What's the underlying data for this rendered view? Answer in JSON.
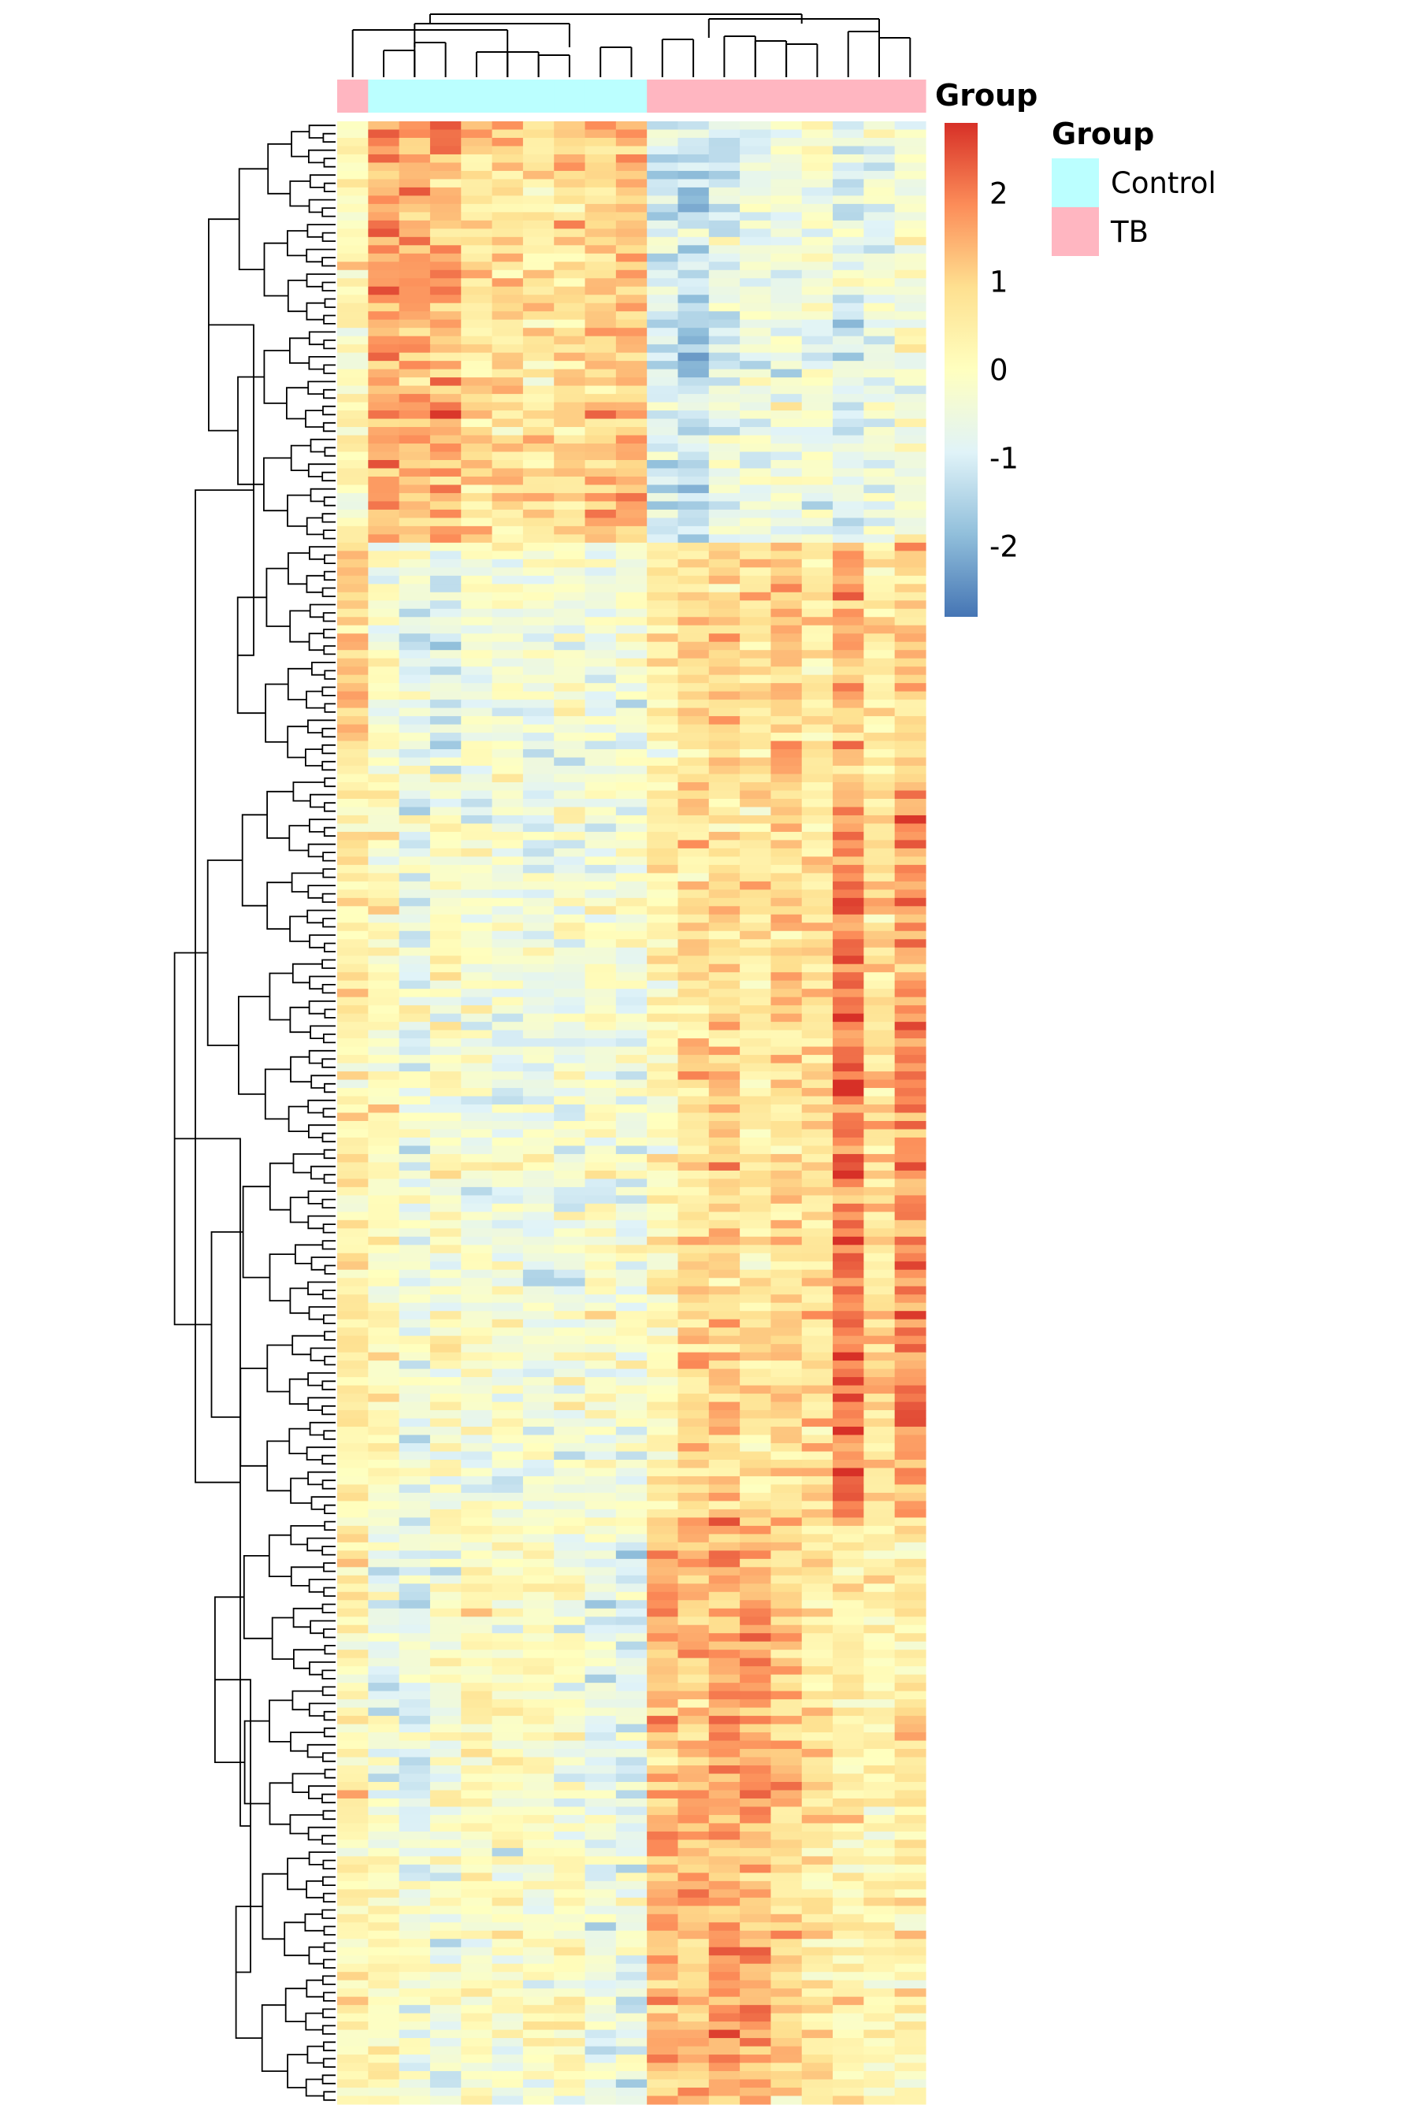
{
  "chart_data": {
    "type": "heatmap",
    "title": "",
    "columns": 19,
    "rows": 240,
    "column_annotation": {
      "label": "Group",
      "values": [
        "TB",
        "Control",
        "Control",
        "Control",
        "Control",
        "Control",
        "Control",
        "Control",
        "Control",
        "Control",
        "TB",
        "TB",
        "TB",
        "TB",
        "TB",
        "TB",
        "TB",
        "TB",
        "TB"
      ]
    },
    "color_scale": {
      "min": -2.8,
      "max": 2.8,
      "ticks": [
        2,
        1,
        0,
        -1,
        -2
      ],
      "tick_labels": [
        "2",
        "1",
        "0",
        "-1",
        "-2"
      ],
      "colors": [
        "#4575B4",
        "#91BFDB",
        "#E0F3F8",
        "#FFFFBF",
        "#FEE090",
        "#FC8D59",
        "#D73027"
      ]
    },
    "legend": {
      "title": "Group",
      "placement": "right",
      "entries": [
        {
          "label": "Control",
          "color": "#BBFFFF"
        },
        {
          "label": "TB",
          "color": "#FFB6C1"
        }
      ]
    },
    "row_blocks": [
      {
        "rows": 51,
        "pattern": [
          0.2,
          1.6,
          1.4,
          1.5,
          0.8,
          0.9,
          0.7,
          0.9,
          1.1,
          1.2,
          -1.0,
          -1.3,
          -0.8,
          -0.6,
          -0.5,
          -0.4,
          -0.7,
          -0.4,
          -0.3
        ]
      },
      {
        "rows": 28,
        "pattern": [
          1.0,
          -0.2,
          -0.6,
          -0.8,
          -0.4,
          -0.3,
          -0.4,
          -0.3,
          -0.6,
          -0.3,
          0.4,
          0.7,
          0.9,
          0.7,
          1.1,
          0.5,
          1.4,
          0.6,
          1.0
        ]
      },
      {
        "rows": 90,
        "pattern": [
          0.4,
          0.1,
          -0.4,
          -0.1,
          -0.3,
          -0.4,
          -0.5,
          -0.4,
          -0.3,
          -0.3,
          0.3,
          0.9,
          1.0,
          0.6,
          0.9,
          0.8,
          2.1,
          0.8,
          1.8
        ]
      },
      {
        "rows": 40,
        "pattern": [
          0.3,
          -0.4,
          -0.7,
          -0.3,
          0.1,
          -0.1,
          0.0,
          -0.3,
          -0.6,
          -0.8,
          1.3,
          1.3,
          1.6,
          1.6,
          1.0,
          0.6,
          0.4,
          0.3,
          0.5
        ]
      },
      {
        "rows": 31,
        "pattern": [
          0.3,
          0.1,
          -0.3,
          -0.4,
          0.0,
          -0.2,
          -0.1,
          0.1,
          -0.6,
          -0.5,
          1.4,
          1.3,
          1.6,
          1.5,
          1.0,
          0.6,
          0.3,
          0.2,
          0.3
        ]
      }
    ]
  }
}
